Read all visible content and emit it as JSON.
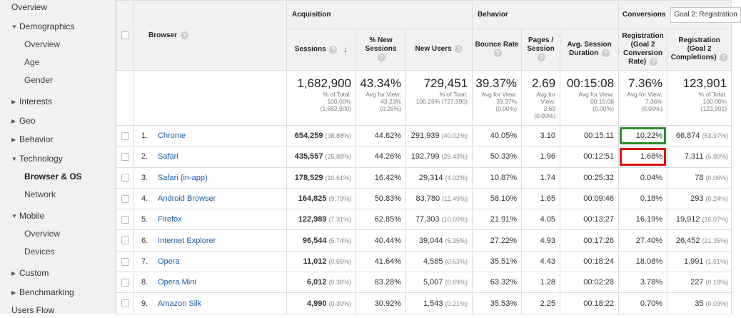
{
  "sidebar": {
    "items": [
      {
        "label": "Overview",
        "level": 1,
        "arrow": "none"
      },
      {
        "label": "Demographics",
        "level": 1,
        "arrow": "down"
      },
      {
        "label": "Overview",
        "level": 2
      },
      {
        "label": "Age",
        "level": 2
      },
      {
        "label": "Gender",
        "level": 2
      },
      {
        "label": "Interests",
        "level": 1,
        "arrow": "right"
      },
      {
        "label": "Geo",
        "level": 1,
        "arrow": "right"
      },
      {
        "label": "Behavior",
        "level": 1,
        "arrow": "right"
      },
      {
        "label": "Technology",
        "level": 1,
        "arrow": "down"
      },
      {
        "label": "Browser & OS",
        "level": 2,
        "active": true
      },
      {
        "label": "Network",
        "level": 2
      },
      {
        "label": "Mobile",
        "level": 1,
        "arrow": "down"
      },
      {
        "label": "Overview",
        "level": 2
      },
      {
        "label": "Devices",
        "level": 2
      },
      {
        "label": "Custom",
        "level": 1,
        "arrow": "right"
      },
      {
        "label": "Benchmarking",
        "level": 1,
        "arrow": "right"
      },
      {
        "label": "Users Flow",
        "level": 1,
        "arrow": "none"
      }
    ]
  },
  "header": {
    "dimension": "Browser",
    "groups": {
      "acquisition": "Acquisition",
      "behavior": "Behavior",
      "conversions": "Conversions",
      "goal_select": "Goal 2: Registration"
    },
    "columns": {
      "sessions": "Sessions",
      "new_sessions_pct": [
        "% New",
        "Sessions"
      ],
      "new_users": "New Users",
      "bounce_rate": "Bounce Rate",
      "pages_session": [
        "Pages /",
        "Session"
      ],
      "avg_duration": [
        "Avg. Session",
        "Duration"
      ],
      "conv_rate": [
        "Registration",
        "(Goal 2",
        "Conversion",
        "Rate)"
      ],
      "completions": [
        "Registration",
        "(Goal 2",
        "Completions)"
      ]
    }
  },
  "totals": {
    "sessions": {
      "value": "1,682,900",
      "sub": [
        "% of Total:",
        "100.00%",
        "(1,682,900)"
      ]
    },
    "new_sessions_pct": {
      "value": "43.34%",
      "sub": [
        "Avg for View:",
        "43.23%",
        "(0.26%)"
      ]
    },
    "new_users": {
      "value": "729,451",
      "sub": [
        "% of Total:",
        "100.26% (727,590)"
      ]
    },
    "bounce_rate": {
      "value": "39.37%",
      "sub": [
        "Avg for View:",
        "39.37%",
        "(0.00%)"
      ]
    },
    "pages_session": {
      "value": "2.69",
      "sub": [
        "Avg for",
        "View:",
        "2.69",
        "(0.00%)"
      ]
    },
    "avg_duration": {
      "value": "00:15:08",
      "sub": [
        "Avg for View:",
        "00:15:08",
        "(0.00%)"
      ]
    },
    "conv_rate": {
      "value": "7.36%",
      "sub": [
        "Avg for View:",
        "7.36%",
        "(0.00%)"
      ]
    },
    "completions": {
      "value": "123,901",
      "sub": [
        "% of Total:",
        "100.00%",
        "(123,901)"
      ]
    }
  },
  "rows": [
    {
      "idx": "1.",
      "browser": "Chrome",
      "sessions": "654,259",
      "sessions_pct": "(38.88%)",
      "new_sessions": "44.62%",
      "new_users": "291,939",
      "new_users_pct": "(40.02%)",
      "bounce": "40.05%",
      "pages": "3.10",
      "duration": "00:15:11",
      "conv_rate": "10.22%",
      "completions": "66,874",
      "completions_pct": "(53.97%)"
    },
    {
      "idx": "2.",
      "browser": "Safari",
      "sessions": "435,557",
      "sessions_pct": "(25.88%)",
      "new_sessions": "44.26%",
      "new_users": "192,799",
      "new_users_pct": "(26.43%)",
      "bounce": "50.33%",
      "pages": "1.96",
      "duration": "00:12:51",
      "conv_rate": "1.68%",
      "completions": "7,311",
      "completions_pct": "(5.90%)"
    },
    {
      "idx": "3.",
      "browser": "Safari (in-app)",
      "sessions": "178,529",
      "sessions_pct": "(10.61%)",
      "new_sessions": "16.42%",
      "new_users": "29,314",
      "new_users_pct": "(4.02%)",
      "bounce": "10.87%",
      "pages": "1.74",
      "duration": "00:25:32",
      "conv_rate": "0.04%",
      "completions": "78",
      "completions_pct": "(0.06%)"
    },
    {
      "idx": "4.",
      "browser": "Android Browser",
      "sessions": "164,825",
      "sessions_pct": "(9.79%)",
      "new_sessions": "50.83%",
      "new_users": "83,780",
      "new_users_pct": "(11.49%)",
      "bounce": "58.10%",
      "pages": "1.65",
      "duration": "00:09:46",
      "conv_rate": "0.18%",
      "completions": "293",
      "completions_pct": "(0.24%)"
    },
    {
      "idx": "5.",
      "browser": "Firefox",
      "sessions": "122,989",
      "sessions_pct": "(7.31%)",
      "new_sessions": "62.85%",
      "new_users": "77,303",
      "new_users_pct": "(10.60%)",
      "bounce": "21.91%",
      "pages": "4.05",
      "duration": "00:13:27",
      "conv_rate": "16.19%",
      "completions": "19,912",
      "completions_pct": "(16.07%)"
    },
    {
      "idx": "6.",
      "browser": "Internet Explorer",
      "sessions": "96,544",
      "sessions_pct": "(5.74%)",
      "new_sessions": "40.44%",
      "new_users": "39,044",
      "new_users_pct": "(5.35%)",
      "bounce": "27.22%",
      "pages": "4.93",
      "duration": "00:17:26",
      "conv_rate": "27.40%",
      "completions": "26,452",
      "completions_pct": "(21.35%)"
    },
    {
      "idx": "7.",
      "browser": "Opera",
      "sessions": "11,012",
      "sessions_pct": "(0.65%)",
      "new_sessions": "41.64%",
      "new_users": "4,585",
      "new_users_pct": "(0.63%)",
      "bounce": "35.51%",
      "pages": "4.43",
      "duration": "00:18:24",
      "conv_rate": "18.08%",
      "completions": "1,991",
      "completions_pct": "(1.61%)"
    },
    {
      "idx": "8.",
      "browser": "Opera Mini",
      "sessions": "6,012",
      "sessions_pct": "(0.36%)",
      "new_sessions": "83.28%",
      "new_users": "5,007",
      "new_users_pct": "(0.69%)",
      "bounce": "63.32%",
      "pages": "1.28",
      "duration": "00:02:28",
      "conv_rate": "3.78%",
      "completions": "227",
      "completions_pct": "(0.18%)"
    },
    {
      "idx": "9.",
      "browser": "Amazon Silk",
      "sessions": "4,990",
      "sessions_pct": "(0.30%)",
      "new_sessions": "30.92%",
      "new_users": "1,543",
      "new_users_pct": "(0.21%)",
      "bounce": "35.53%",
      "pages": "2.25",
      "duration": "00:18:22",
      "conv_rate": "0.70%",
      "completions": "35",
      "completions_pct": "(0.03%)"
    }
  ],
  "highlights": {
    "green": "#2e8b2e",
    "red": "#dd1111"
  },
  "colors": {
    "link": "#1a5ea8",
    "header_bg": "#f1f1f1",
    "sidebar_bg": "#f1f1f1"
  }
}
